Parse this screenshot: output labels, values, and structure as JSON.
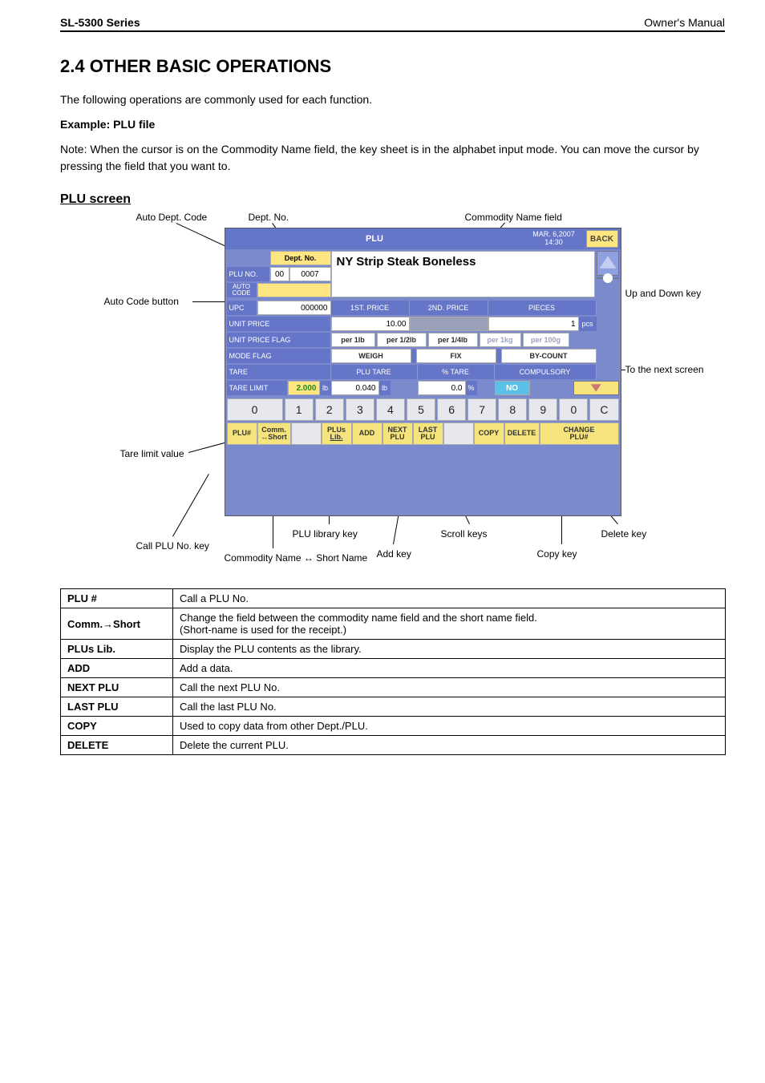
{
  "header": {
    "left": "SL-5300 Series",
    "right": "Owner's Manual"
  },
  "section_title": "2.4 OTHER BASIC OPERATIONS",
  "intro": {
    "line1": "The following operations are commonly used for each function.",
    "line2_bold": "Example: PLU file"
  },
  "note": "Note: When the cursor is on the Commodity Name field, the key sheet is in the alphabet input mode. You can move the cursor by pressing the field that you want to.",
  "screen_heading": "PLU screen",
  "callouts": {
    "auto_dept": "Auto Dept. Code",
    "dept_no": "Dept. No.",
    "comm_name": "Commodity Name field",
    "auto_code_btn": "Auto Code button",
    "next_arrow": "To the next screen",
    "tare_limit": "Tare limit value",
    "call_plu": "Call PLU No. key",
    "comm_name2": "Commodity Name ↔ Short Name",
    "plu_lib": "PLU library key",
    "add_key": "Add key",
    "scroll_keys": "Scroll keys",
    "copy_key": "Copy key",
    "delete_key": "Delete key",
    "updown": "Up and Down key"
  },
  "plu": {
    "title": "PLU",
    "date": "MAR. 6,2007",
    "time": "14:30",
    "back": "BACK",
    "dept_no_label": "Dept. No.",
    "dept_code": "00",
    "plu_no_label": "PLU NO.",
    "plu_num": "0007",
    "auto_code_label": "AUTO\nCODE",
    "upc_label": "UPC",
    "upc_val": "000000",
    "first_price": "1ST. PRICE",
    "second_price": "2ND. PRICE",
    "pieces": "PIECES",
    "unit_price_label": "UNIT PRICE",
    "unit_price_val": "10.00",
    "pieces_val": "1",
    "pcs": "pcs",
    "unit_price_flag": "UNIT PRICE FLAG",
    "upf1": "per 1lb",
    "upf2": "per 1/2lb",
    "upf3": "per 1/4lb",
    "upf4": "per 1kg",
    "upf5": "per 100g",
    "mode_flag": "MODE FLAG",
    "mf1": "WEIGH",
    "mf2": "FIX",
    "mf3": "BY-COUNT",
    "tare_label": "TARE",
    "plu_tare": "PLU TARE",
    "pct_tare": "% TARE",
    "compulsory": "COMPULSORY",
    "tare_limit_label": "TARE LIMIT",
    "tare_limit_val": "2.000",
    "lb": "lb",
    "plu_tare_val": "0.040",
    "pct_tare_val": "0.0",
    "pct": "%",
    "comp_val": "NO",
    "commodity_name": "NY Strip Steak Boneless",
    "keys": [
      "0",
      "1",
      "2",
      "3",
      "4",
      "5",
      "6",
      "7",
      "8",
      "9",
      "0",
      "C"
    ],
    "fn": {
      "plu": "PLU#",
      "comm": "Comm.",
      "short": "↔Short",
      "lib1": "PLUs",
      "lib2": "Lib.",
      "add": "ADD",
      "next1": "NEXT",
      "next2": "PLU",
      "last1": "LAST",
      "last2": "PLU",
      "copy": "COPY",
      "delete": "DELETE",
      "chg1": "CHANGE",
      "chg2": "PLU#"
    }
  },
  "table": {
    "rows": [
      [
        "PLU #",
        "Call a PLU No."
      ],
      [
        "Comm.→Short",
        "Change the field between the commodity name field and the short name field.\n(Short-name is used for the receipt.)"
      ],
      [
        "PLUs Lib.",
        "Display the PLU contents as the library."
      ],
      [
        "ADD",
        "Add a data."
      ],
      [
        "NEXT PLU",
        "Call the next PLU No."
      ],
      [
        "LAST PLU",
        "Call the last PLU No."
      ],
      [
        "COPY",
        "Used to copy data from other Dept./PLU."
      ],
      [
        "DELETE",
        "Delete the current PLU."
      ]
    ]
  }
}
